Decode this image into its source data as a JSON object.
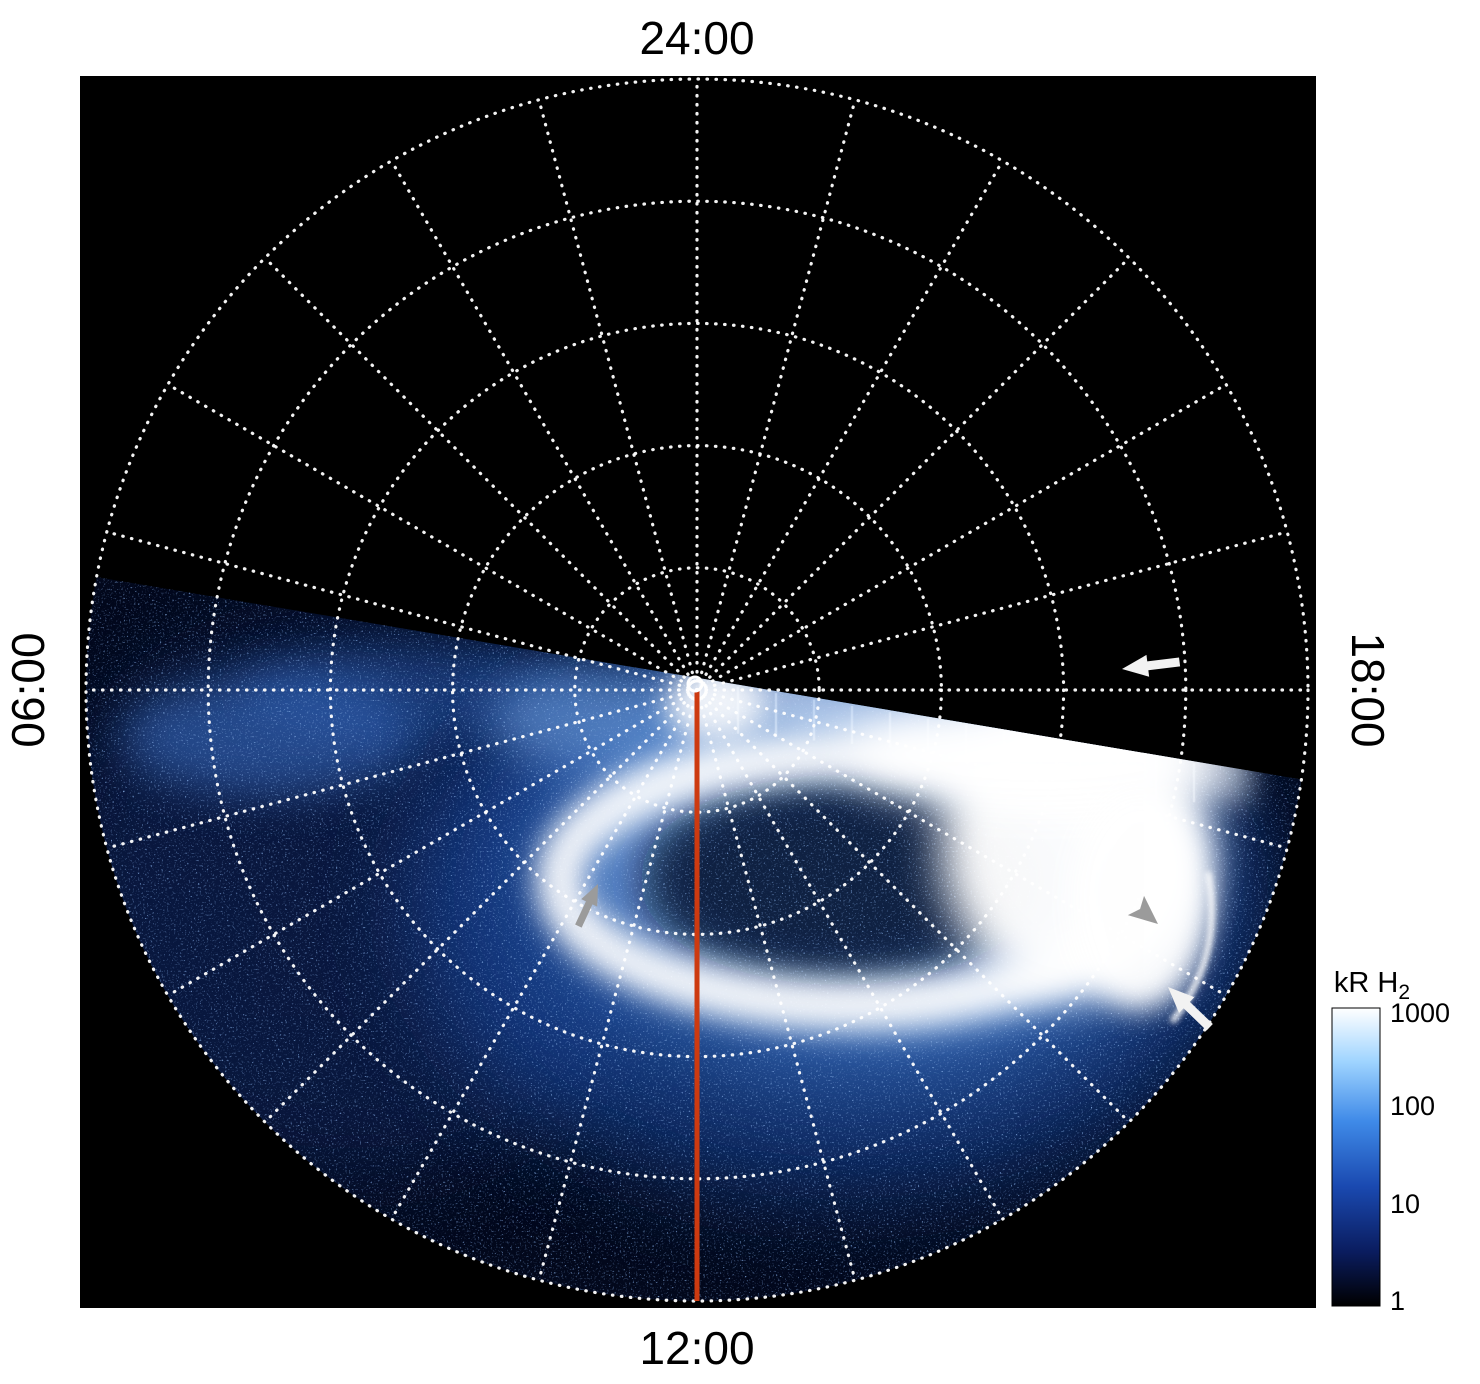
{
  "figure": {
    "labels": {
      "top": "24:00",
      "bottom": "12:00",
      "left": "06:00",
      "right": "18:00"
    },
    "colorbar": {
      "title_main": "kR H",
      "title_sub": "2",
      "ticks": [
        "1000",
        "100",
        "10",
        "1"
      ]
    },
    "colors": {
      "page_background": "#ffffff",
      "plot_background": "#000000",
      "grid": "#ffffff",
      "meridian": "#cd3a10",
      "arrow_white": "#f2f2f2",
      "arrow_gray": "#9b9b9b"
    }
  },
  "chart_data": {
    "type": "heatmap",
    "projection": "polar",
    "title": "",
    "angular_axis": {
      "units": "local time (hours)",
      "labels": [
        {
          "position": "top",
          "text": "24:00"
        },
        {
          "position": "left",
          "text": "06:00"
        },
        {
          "position": "bottom",
          "text": "12:00"
        },
        {
          "position": "right",
          "text": "18:00"
        }
      ],
      "spokes": 24,
      "spoke_interval_hours": 1,
      "grid_style": "dotted"
    },
    "radial_axis": {
      "rings": 5,
      "grid_style": "dotted"
    },
    "colorbar": {
      "label": "kR H2",
      "scale": "log",
      "min": 1,
      "max": 1000,
      "tick_values": [
        1000,
        100,
        10,
        1
      ],
      "colormap": [
        "#000000",
        "#0a1c5e",
        "#1a49b0",
        "#3f8ae8",
        "#9fd4ff",
        "#ffffff"
      ],
      "position": "right"
    },
    "meridian_marker": {
      "local_time": "12:00",
      "color": "#cd3a10",
      "from": "pole",
      "to": "outer edge"
    },
    "coverage": {
      "observed_sector": "lower half of polar projection, roughly 06:00 through 12:00 to 18:00",
      "unobserved_sector": "upper half toward 24:00 is black (no data), terminator slopes from 06:00 side down toward 18:00 side"
    },
    "features": [
      {
        "name": "diffuse polar emission",
        "intensity_kR": "5-50",
        "extent": "speckled blue emission filling the observed sector"
      },
      {
        "name": "main auroral oval",
        "intensity_kR": "200-1000",
        "description": "bright partial oval around the pole, open toward 06:00, brightest toward dusk"
      },
      {
        "name": "saturated dusk-side emission",
        "local_time": "14:00-17:00",
        "intensity_kR": ">1000",
        "description": "large saturated white region"
      },
      {
        "name": "narrow detached arc",
        "local_time": "16:00-17:30",
        "intensity_kR": "~1000",
        "description": "thin bright arc equatorward of the main emission"
      },
      {
        "name": "dark polar interior",
        "intensity_kR": "<10",
        "description": "low-emission dark region enclosed by the oval"
      }
    ],
    "annotations": [
      {
        "type": "arrow",
        "color": "white",
        "direction": "left",
        "points_to": "data boundary near 18:00"
      },
      {
        "type": "arrow",
        "color": "gray",
        "direction": "up-right",
        "points_to": "left edge of main oval"
      },
      {
        "type": "arrowhead",
        "color": "gray",
        "direction": "down-right",
        "points_to": "narrow detached arc"
      },
      {
        "type": "arrow",
        "color": "white",
        "direction": "up-left",
        "points_to": "narrow detached arc"
      }
    ]
  }
}
